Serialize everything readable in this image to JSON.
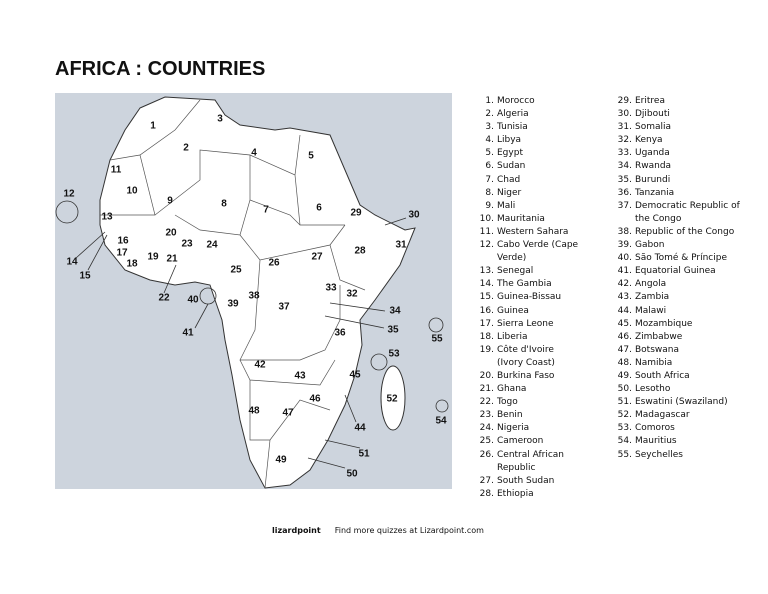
{
  "title": "AFRICA : COUNTRIES",
  "countries": [
    {
      "number": "1.",
      "name": "Morocco"
    },
    {
      "number": "2.",
      "name": "Algeria"
    },
    {
      "number": "3.",
      "name": "Tunisia"
    },
    {
      "number": "4.",
      "name": "Libya"
    },
    {
      "number": "5.",
      "name": "Egypt"
    },
    {
      "number": "6.",
      "name": "Sudan"
    },
    {
      "number": "7.",
      "name": "Chad"
    },
    {
      "number": "8.",
      "name": "Niger"
    },
    {
      "number": "9.",
      "name": "Mali"
    },
    {
      "number": "10.",
      "name": "Mauritania"
    },
    {
      "number": "11.",
      "name": "Western Sahara"
    },
    {
      "number": "12.",
      "name": "Cabo Verde (Cape Verde)"
    },
    {
      "number": "13.",
      "name": "Senegal"
    },
    {
      "number": "14.",
      "name": "The Gambia"
    },
    {
      "number": "15.",
      "name": "Guinea-Bissau"
    },
    {
      "number": "16.",
      "name": "Guinea"
    },
    {
      "number": "17.",
      "name": "Sierra Leone"
    },
    {
      "number": "18.",
      "name": "Liberia"
    },
    {
      "number": "19.",
      "name": "Côte d'Ivoire (Ivory Coast)"
    },
    {
      "number": "20.",
      "name": "Burkina Faso"
    },
    {
      "number": "21.",
      "name": "Ghana"
    },
    {
      "number": "22.",
      "name": "Togo"
    },
    {
      "number": "23.",
      "name": "Benin"
    },
    {
      "number": "24.",
      "name": "Nigeria"
    },
    {
      "number": "25.",
      "name": "Cameroon"
    },
    {
      "number": "26.",
      "name": "Central African Republic"
    },
    {
      "number": "27.",
      "name": "South Sudan"
    },
    {
      "number": "28.",
      "name": "Ethiopia"
    },
    {
      "number": "29.",
      "name": "Eritrea"
    },
    {
      "number": "30.",
      "name": "Djibouti"
    },
    {
      "number": "31.",
      "name": "Somalia"
    },
    {
      "number": "32.",
      "name": "Kenya"
    },
    {
      "number": "33.",
      "name": "Uganda"
    },
    {
      "number": "34.",
      "name": "Rwanda"
    },
    {
      "number": "35.",
      "name": "Burundi"
    },
    {
      "number": "36.",
      "name": "Tanzania"
    },
    {
      "number": "37.",
      "name": "Democratic Republic of the Congo"
    },
    {
      "number": "38.",
      "name": "Republic of the Congo"
    },
    {
      "number": "39.",
      "name": "Gabon"
    },
    {
      "number": "40.",
      "name": "São Tomé & Príncipe"
    },
    {
      "number": "41.",
      "name": "Equatorial Guinea"
    },
    {
      "number": "42.",
      "name": "Angola"
    },
    {
      "number": "43.",
      "name": "Zambia"
    },
    {
      "number": "44.",
      "name": "Malawi"
    },
    {
      "number": "45.",
      "name": "Mozambique"
    },
    {
      "number": "46.",
      "name": "Zimbabwe"
    },
    {
      "number": "47.",
      "name": "Botswana"
    },
    {
      "number": "48.",
      "name": "Namibia"
    },
    {
      "number": "49.",
      "name": "South Africa"
    },
    {
      "number": "50.",
      "name": "Lesotho"
    },
    {
      "number": "51.",
      "name": "Eswatini (Swaziland)"
    },
    {
      "number": "52.",
      "name": "Madagascar"
    },
    {
      "number": "53.",
      "name": "Comoros"
    },
    {
      "number": "54.",
      "name": "Mauritius"
    },
    {
      "number": "55.",
      "name": "Seychelles"
    }
  ],
  "map_labels": [
    "1",
    "2",
    "3",
    "4",
    "5",
    "6",
    "7",
    "8",
    "9",
    "10",
    "11",
    "12",
    "13",
    "14",
    "15",
    "16",
    "17",
    "18",
    "19",
    "20",
    "21",
    "22",
    "23",
    "24",
    "25",
    "26",
    "27",
    "28",
    "29",
    "30",
    "31",
    "32",
    "33",
    "34",
    "35",
    "36",
    "37",
    "38",
    "39",
    "40",
    "41",
    "42",
    "43",
    "44",
    "45",
    "46",
    "47",
    "48",
    "49",
    "50",
    "51",
    "52",
    "53",
    "54",
    "55"
  ],
  "footer": {
    "logo": "lizardpoint",
    "text": "Find more quizzes at Lizardpoint.com"
  }
}
